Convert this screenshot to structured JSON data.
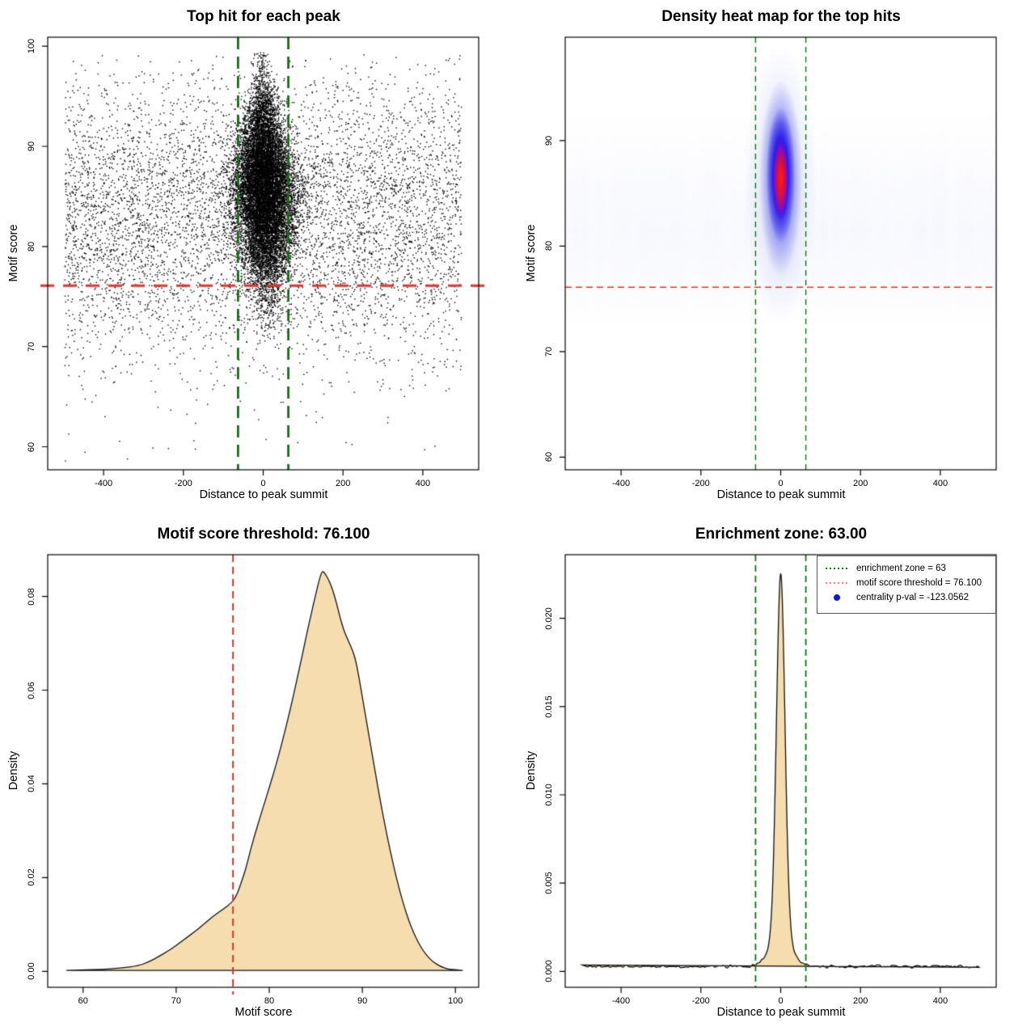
{
  "figure": {
    "motif_score_threshold": 76.1,
    "enrichment_zone": 63,
    "centrality_p_val": -123.0562,
    "colors": {
      "threshold_line": "#e0352b",
      "zone_line": "#156e15",
      "density_fill": "#f5ddb0",
      "legend_dot": "#1414e6",
      "heat_core": "#e81414",
      "heat_mid": "#2a1ae8",
      "heat_halo": "#96a0e1",
      "points": "#000000"
    }
  },
  "chart_data": [
    {
      "type": "scatter",
      "title": "Top hit for each peak",
      "xlabel": "Distance to peak summit",
      "ylabel": "Motif score",
      "xlim": [
        -540,
        540
      ],
      "ylim": [
        57.7,
        100.9
      ],
      "x_tick_values": [
        -400,
        -200,
        0,
        200,
        400
      ],
      "x_tick_labels": [
        "-400",
        "-200",
        "0",
        "200",
        "400"
      ],
      "y_tick_values": [
        60,
        70,
        80,
        90,
        100
      ],
      "y_tick_labels": [
        "60",
        "70",
        "80",
        "90",
        "100"
      ],
      "hline": {
        "value": 76.1,
        "color": "#e0352b",
        "dash": [
          17,
          11
        ],
        "width": 3
      },
      "vlines": {
        "values": [
          -63,
          63
        ],
        "color": "#156e15",
        "dash": [
          15,
          9
        ],
        "width": 2.8
      },
      "seed": 1337,
      "background_points": {
        "n": 6200,
        "x_range": [
          -497,
          497
        ],
        "y_mean": 83,
        "y_sd": 7,
        "y_clip": [
          58.5,
          99.2
        ]
      },
      "low_outliers": {
        "n": 22,
        "y_range": [
          58.3,
          67
        ]
      },
      "cluster": {
        "n": 13500,
        "center_distance": 3,
        "center_score": 85.5,
        "score_sd": 4.8,
        "score_clip": [
          70.2,
          99.4
        ],
        "tilt": -0.55,
        "sigma_profile": [
          [
            71,
            16
          ],
          [
            75,
            24
          ],
          [
            80,
            34
          ],
          [
            85.5,
            40
          ],
          [
            90,
            32
          ],
          [
            94,
            21
          ],
          [
            97,
            14
          ],
          [
            99.5,
            9
          ]
        ]
      },
      "point_size": 1.4
    },
    {
      "type": "heatmap",
      "title": "Density heat map for the top hits",
      "xlabel": "Distance to peak summit",
      "ylabel": "Motif score",
      "xlim": [
        -540,
        540
      ],
      "ylim": [
        58.8,
        99.8
      ],
      "x_tick_values": [
        -400,
        -200,
        0,
        200,
        400
      ],
      "x_tick_labels": [
        "-400",
        "-200",
        "0",
        "200",
        "400"
      ],
      "y_tick_values": [
        60,
        70,
        80,
        90
      ],
      "y_tick_labels": [
        "60",
        "70",
        "80",
        "90"
      ],
      "hline": {
        "value": 76.1,
        "color": "#e0352b",
        "dash": [
          8,
          5
        ],
        "width": 1.4
      },
      "vlines": {
        "values": [
          -63,
          63
        ],
        "color": "#156e15",
        "dash": [
          7,
          5
        ],
        "width": 1.4
      },
      "seed": 77,
      "density_center": {
        "distance": 0,
        "score": 86.3
      },
      "stripes": {
        "score_band": [
          72.5,
          92.5
        ],
        "rgb": "150,162,232",
        "alpha_base": 0.045,
        "alpha_var": 0.055
      },
      "blob_layers": [
        {
          "score_range": [
            72.5,
            99.3
          ],
          "dist_range": [
            -92,
            92
          ],
          "stops": [
            [
              0,
              "rgba(140,150,225,0.38)"
            ],
            [
              0.5,
              "rgba(150,160,230,0.22)"
            ],
            [
              1,
              "rgba(160,170,235,0)"
            ]
          ]
        },
        {
          "score_range": [
            77,
            95.8
          ],
          "dist_range": [
            -54,
            54
          ],
          "stops": [
            [
              0,
              "rgba(60,60,240,0.78)"
            ],
            [
              0.55,
              "rgba(70,70,240,0.5)"
            ],
            [
              1,
              "rgba(90,90,240,0)"
            ]
          ]
        },
        {
          "score_range": [
            80.3,
            93.2
          ],
          "dist_range": [
            -36,
            36
          ],
          "stops": [
            [
              0,
              "rgba(25,15,235,1)"
            ],
            [
              0.55,
              "rgba(35,25,235,0.9)"
            ],
            [
              1,
              "rgba(45,30,235,0)"
            ]
          ]
        },
        {
          "score_range": [
            82.4,
            90.4
          ],
          "dist_range": [
            -21,
            21
          ],
          "stops": [
            [
              0,
              "rgba(255,30,18,1)"
            ],
            [
              0.4,
              "rgba(235,15,40,0.95)"
            ],
            [
              0.72,
              "rgba(150,10,180,0.85)"
            ],
            [
              1,
              "rgba(60,10,230,0)"
            ]
          ]
        }
      ]
    },
    {
      "type": "area",
      "title": "Motif score threshold: 76.100",
      "xlabel": "Motif score",
      "ylabel": "Density",
      "xlim": [
        56.2,
        102.5
      ],
      "ylim": [
        -0.0034,
        0.0889
      ],
      "x_tick_values": [
        60,
        70,
        80,
        90,
        100
      ],
      "x_tick_labels": [
        "60",
        "70",
        "80",
        "90",
        "100"
      ],
      "y_tick_values": [
        0,
        0.02,
        0.04,
        0.06,
        0.08
      ],
      "y_tick_labels": [
        "0.00",
        "0.02",
        "0.04",
        "0.06",
        "0.08"
      ],
      "fill": "#f5ddb0",
      "stroke": "#111111",
      "vline": {
        "value": 76.1,
        "color": "#e0352b",
        "dash": [
          9,
          6
        ],
        "width": 2
      },
      "peak": {
        "x": 85.7,
        "density": 0.0855
      },
      "curve": [
        [
          58.2,
          0.0002
        ],
        [
          60,
          0.0003
        ],
        [
          62,
          0.0004
        ],
        [
          64,
          0.0007
        ],
        [
          66,
          0.0012
        ],
        [
          67,
          0.002
        ],
        [
          68,
          0.003
        ],
        [
          69,
          0.0042
        ],
        [
          70,
          0.0055
        ],
        [
          71,
          0.007
        ],
        [
          72,
          0.0085
        ],
        [
          73,
          0.0101
        ],
        [
          74,
          0.0118
        ],
        [
          75,
          0.0132
        ],
        [
          76,
          0.0147
        ],
        [
          76.5,
          0.0162
        ],
        [
          77,
          0.019
        ],
        [
          77.5,
          0.022
        ],
        [
          78,
          0.026
        ],
        [
          78.5,
          0.0295
        ],
        [
          79,
          0.0328
        ],
        [
          79.5,
          0.036
        ],
        [
          80,
          0.0392
        ],
        [
          80.5,
          0.0425
        ],
        [
          81,
          0.046
        ],
        [
          81.5,
          0.0498
        ],
        [
          82,
          0.0538
        ],
        [
          82.5,
          0.058
        ],
        [
          83,
          0.0625
        ],
        [
          83.5,
          0.067
        ],
        [
          84,
          0.0718
        ],
        [
          84.5,
          0.0762
        ],
        [
          85,
          0.0805
        ],
        [
          85.4,
          0.0838
        ],
        [
          85.7,
          0.0855
        ],
        [
          86,
          0.0849
        ],
        [
          86.4,
          0.0835
        ],
        [
          86.8,
          0.0815
        ],
        [
          87.2,
          0.0788
        ],
        [
          87.6,
          0.0756
        ],
        [
          88,
          0.0728
        ],
        [
          88.5,
          0.0705
        ],
        [
          89,
          0.0683
        ],
        [
          89.4,
          0.0655
        ],
        [
          90,
          0.0585
        ],
        [
          90.5,
          0.0528
        ],
        [
          91,
          0.047
        ],
        [
          91.5,
          0.0412
        ],
        [
          92,
          0.0356
        ],
        [
          92.5,
          0.0305
        ],
        [
          93,
          0.0257
        ],
        [
          93.5,
          0.0213
        ],
        [
          94,
          0.0173
        ],
        [
          94.5,
          0.0138
        ],
        [
          95,
          0.0108
        ],
        [
          95.5,
          0.0083
        ],
        [
          96,
          0.0062
        ],
        [
          96.5,
          0.0045
        ],
        [
          97,
          0.0032
        ],
        [
          97.5,
          0.0022
        ],
        [
          98,
          0.0015
        ],
        [
          98.5,
          0.001
        ],
        [
          99,
          0.0006
        ],
        [
          99.5,
          0.0004
        ],
        [
          100.2,
          0.0003
        ],
        [
          100.8,
          0.0002
        ]
      ]
    },
    {
      "type": "spike_density",
      "title": "Enrichment zone: 63.00",
      "xlabel": "Distance to peak summit",
      "ylabel": "Density",
      "xlim": [
        -540,
        540
      ],
      "ylim": [
        -0.0009,
        0.0236
      ],
      "x_tick_values": [
        -400,
        -200,
        0,
        200,
        400
      ],
      "x_tick_labels": [
        "-400",
        "-200",
        "0",
        "200",
        "400"
      ],
      "y_tick_values": [
        0,
        0.005,
        0.01,
        0.015,
        0.02
      ],
      "y_tick_labels": [
        "0.000",
        "0.005",
        "0.010",
        "0.015",
        "0.020"
      ],
      "fill": "#f5ddb0",
      "stroke": "#111111",
      "vlines": {
        "values": [
          -63,
          63
        ],
        "color": "#156e15",
        "dash": [
          8,
          5
        ],
        "width": 1.8
      },
      "seed": 2024,
      "curve_model": {
        "x_range": [
          -497,
          497
        ],
        "step": 2,
        "baseline": 0.00028,
        "noise_amp": 0.00013,
        "peak": {
          "amplitude": 0.0205,
          "sigma": 10.5,
          "center": 0
        },
        "pedestal": {
          "amplitude": 0.0018,
          "sigma": 26
        },
        "max_density": 0.0227
      },
      "legend": {
        "entries": [
          {
            "swatch": "dotted-line",
            "color": "#157815",
            "label": "enrichment zone = 63"
          },
          {
            "swatch": "dotted-line",
            "color": "#f0837a",
            "label": "motif score threshold = 76.100"
          },
          {
            "swatch": "dot",
            "color": "#1414e6",
            "label": "centrality p-val = -123.0562"
          }
        ]
      }
    }
  ]
}
